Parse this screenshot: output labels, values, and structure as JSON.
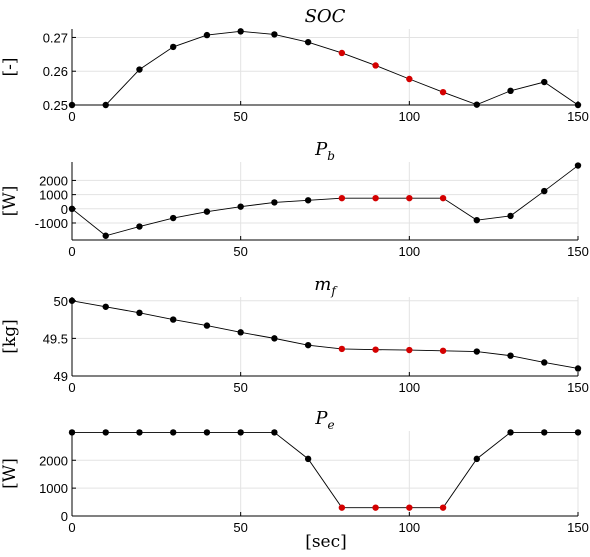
{
  "figure": {
    "xlabel": "[sec]"
  },
  "chart_data": [
    {
      "type": "line",
      "title": {
        "main": "SOC",
        "sub": ""
      },
      "ylabel": "[-]",
      "xlim": [
        0,
        150
      ],
      "ylim": [
        0.25,
        0.2725
      ],
      "xticks": [
        0,
        50,
        100,
        150
      ],
      "xtick_labels": [
        "0",
        "50",
        "100",
        "150"
      ],
      "yticks": [
        0.25,
        0.26,
        0.27
      ],
      "ytick_labels": [
        "0.25",
        "0.26",
        "0.27"
      ],
      "grid": true,
      "x": [
        0,
        10,
        20,
        30,
        40,
        50,
        60,
        70,
        80,
        90,
        100,
        110,
        120,
        130,
        140,
        150
      ],
      "y": [
        0.25,
        0.25,
        0.2605,
        0.2672,
        0.2707,
        0.2718,
        0.2709,
        0.2686,
        0.2654,
        0.2617,
        0.2577,
        0.2538,
        0.2501,
        0.2542,
        0.2568,
        0.25
      ],
      "marker_colors": [
        "#000000",
        "#000000",
        "#000000",
        "#000000",
        "#000000",
        "#000000",
        "#000000",
        "#000000",
        "#d40000",
        "#d40000",
        "#d40000",
        "#d40000",
        "#000000",
        "#000000",
        "#000000",
        "#000000"
      ]
    },
    {
      "type": "line",
      "title": {
        "main": "P",
        "sub": "b"
      },
      "ylabel": "[W]",
      "xlim": [
        0,
        150
      ],
      "ylim": [
        -2200,
        3300
      ],
      "xticks": [
        0,
        50,
        100,
        150
      ],
      "xtick_labels": [
        "0",
        "50",
        "100",
        "150"
      ],
      "yticks": [
        -1000,
        0,
        1000,
        2000
      ],
      "ytick_labels": [
        "-1000",
        "0",
        "1000",
        "2000"
      ],
      "grid": true,
      "x": [
        0,
        10,
        20,
        30,
        40,
        50,
        60,
        70,
        80,
        90,
        100,
        110,
        120,
        130,
        140,
        150
      ],
      "y": [
        0,
        -1900,
        -1250,
        -650,
        -200,
        150,
        450,
        600,
        750,
        750,
        750,
        750,
        -800,
        -500,
        1250,
        3050
      ],
      "marker_colors": [
        "#000000",
        "#000000",
        "#000000",
        "#000000",
        "#000000",
        "#000000",
        "#000000",
        "#000000",
        "#d40000",
        "#d40000",
        "#d40000",
        "#d40000",
        "#000000",
        "#000000",
        "#000000",
        "#000000"
      ]
    },
    {
      "type": "line",
      "title": {
        "main": "m",
        "sub": "f"
      },
      "ylabel": "[kg]",
      "xlim": [
        0,
        150
      ],
      "ylim": [
        49,
        50.05
      ],
      "xticks": [
        0,
        50,
        100,
        150
      ],
      "xtick_labels": [
        "0",
        "50",
        "100",
        "150"
      ],
      "yticks": [
        49,
        49.5,
        50
      ],
      "ytick_labels": [
        "49",
        "49.5",
        "50"
      ],
      "grid": true,
      "x": [
        0,
        10,
        20,
        30,
        40,
        50,
        60,
        70,
        80,
        90,
        100,
        110,
        120,
        130,
        140,
        150
      ],
      "y": [
        50,
        49.92,
        49.84,
        49.75,
        49.67,
        49.58,
        49.5,
        49.41,
        49.36,
        49.35,
        49.345,
        49.335,
        49.325,
        49.27,
        49.18,
        49.1
      ],
      "marker_colors": [
        "#000000",
        "#000000",
        "#000000",
        "#000000",
        "#000000",
        "#000000",
        "#000000",
        "#000000",
        "#d40000",
        "#d40000",
        "#d40000",
        "#d40000",
        "#000000",
        "#000000",
        "#000000",
        "#000000"
      ]
    },
    {
      "type": "line",
      "title": {
        "main": "P",
        "sub": "e"
      },
      "ylabel": "[W]",
      "xlim": [
        0,
        150
      ],
      "ylim": [
        0,
        3050
      ],
      "xticks": [
        0,
        50,
        100,
        150
      ],
      "xtick_labels": [
        "0",
        "50",
        "100",
        "150"
      ],
      "yticks": [
        0,
        1000,
        2000
      ],
      "ytick_labels": [
        "0",
        "1000",
        "2000"
      ],
      "grid": true,
      "x": [
        0,
        10,
        20,
        30,
        40,
        50,
        60,
        70,
        80,
        90,
        100,
        110,
        120,
        130,
        140,
        150
      ],
      "y": [
        3000,
        3000,
        3000,
        3000,
        3000,
        3000,
        3000,
        2050,
        300,
        300,
        300,
        300,
        2050,
        3000,
        3000,
        3000
      ],
      "marker_colors": [
        "#000000",
        "#000000",
        "#000000",
        "#000000",
        "#000000",
        "#000000",
        "#000000",
        "#000000",
        "#d40000",
        "#d40000",
        "#d40000",
        "#d40000",
        "#000000",
        "#000000",
        "#000000",
        "#000000"
      ]
    }
  ]
}
